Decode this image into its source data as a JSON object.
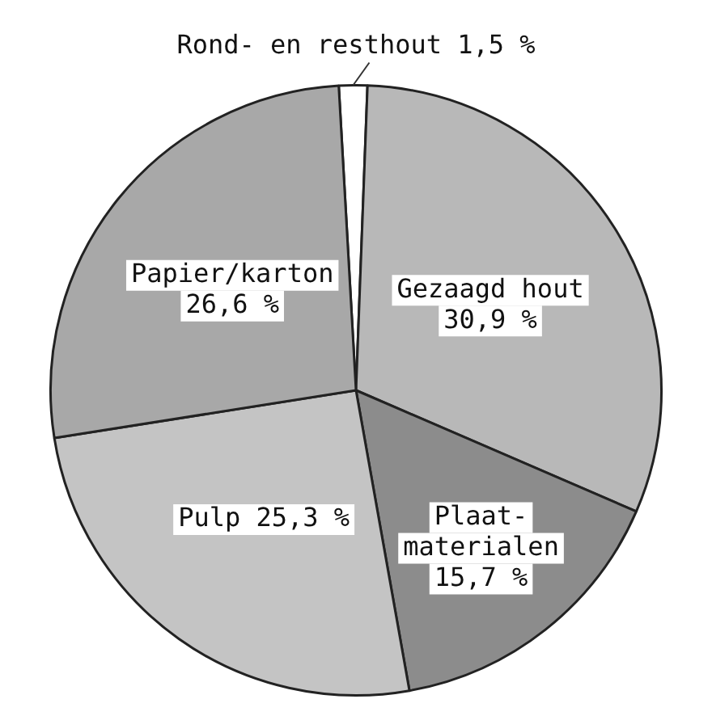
{
  "chart_data": {
    "type": "pie",
    "categories": [
      "Rond- en resthout",
      "Gezaagd hout",
      "Plaat-materialen",
      "Pulp",
      "Papier/karton"
    ],
    "values": [
      1.5,
      30.9,
      15.7,
      25.3,
      26.6
    ],
    "value_labels": [
      "1,5 %",
      "30,9 %",
      "15,7 %",
      "25,3 %",
      "26,6 %"
    ],
    "colors": [
      "#ffffff",
      "#b8b8b8",
      "#8c8c8c",
      "#c4c4c4",
      "#a8a8a8"
    ],
    "legend": false
  }
}
